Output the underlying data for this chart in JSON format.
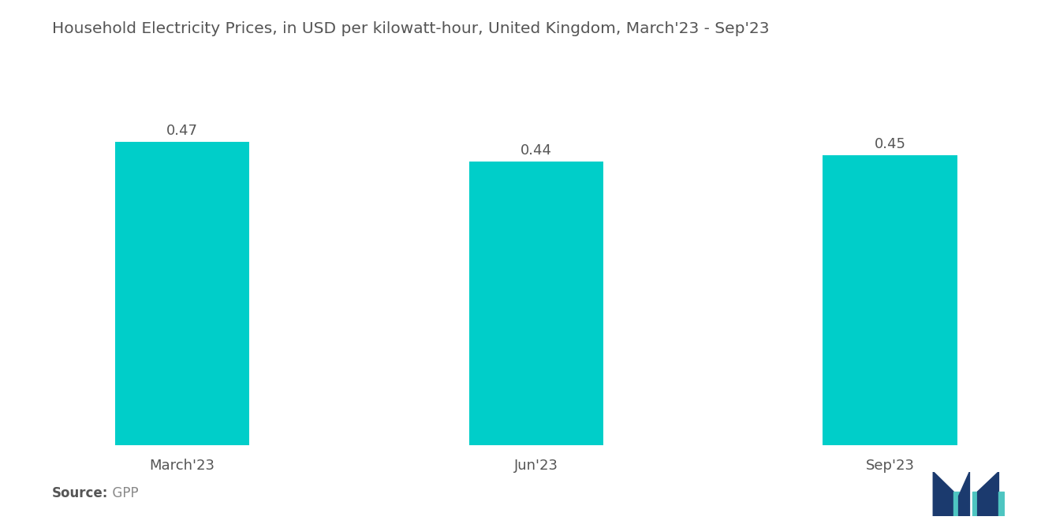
{
  "title": "Household Electricity Prices, in USD per kilowatt-hour, United Kingdom, March'23 - Sep'23",
  "categories": [
    "March'23",
    "Jun'23",
    "Sep'23"
  ],
  "values": [
    0.47,
    0.44,
    0.45
  ],
  "bar_color": "#00CEC9",
  "background_color": "#ffffff",
  "value_labels": [
    "0.47",
    "0.44",
    "0.45"
  ],
  "source_label": "Source:",
  "source_value": "  GPP",
  "title_fontsize": 14.5,
  "label_fontsize": 13,
  "value_fontsize": 13,
  "source_fontsize": 12,
  "ylim": [
    0,
    0.56
  ],
  "bar_width": 0.38
}
